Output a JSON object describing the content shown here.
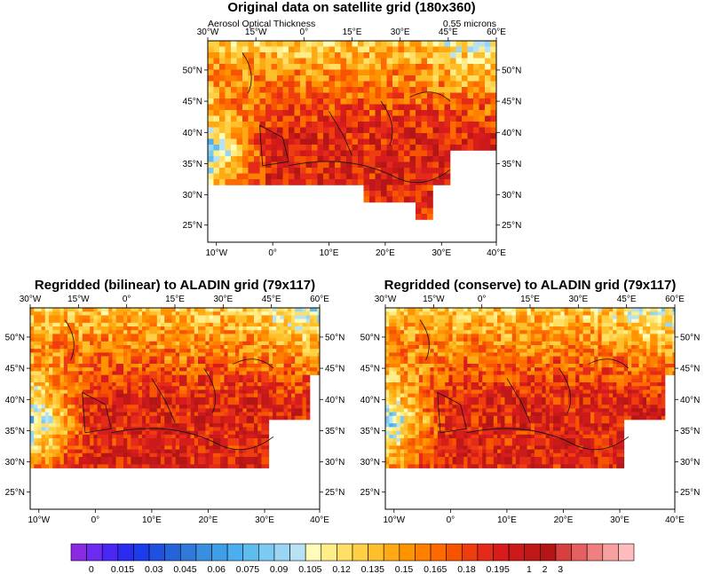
{
  "chart_data": [
    {
      "type": "heatmap",
      "title": "Original data on satellite grid (180x360)",
      "variable_label": "Aerosol Optical Thickness",
      "wavelength_label": "0.55 microns",
      "top_lon_ticks": [
        "30°W",
        "15°W",
        "0°",
        "15°E",
        "30°E",
        "45°E",
        "60°E"
      ],
      "bottom_lon_ticks": [
        "10°W",
        "0°",
        "10°E",
        "20°E",
        "30°E",
        "40°E"
      ],
      "lat_ticks": [
        "50°N",
        "45°N",
        "40°N",
        "35°N",
        "30°N",
        "25°N"
      ],
      "grid": "satellite 1x1 deg",
      "field": "AOT (mostly 0.165–0.2+ over sea and south, 0.1–0.15 over NW Europe, below 0.09 off Iberia)"
    },
    {
      "type": "heatmap",
      "title": "Regridded (bilinear) to ALADIN grid (79x117)",
      "top_lon_ticks": [
        "30°W",
        "15°W",
        "0°",
        "15°E",
        "30°E",
        "45°E",
        "60°E"
      ],
      "bottom_lon_ticks": [
        "10°W",
        "0°",
        "10°E",
        "20°E",
        "30°E",
        "40°E"
      ],
      "lat_ticks": [
        "50°N",
        "45°N",
        "40°N",
        "35°N",
        "30°N",
        "25°N"
      ],
      "grid": "ALADIN 79x117",
      "method": "bilinear"
    },
    {
      "type": "heatmap",
      "title": "Regridded (conserve) to ALADIN grid (79x117)",
      "top_lon_ticks": [
        "30°W",
        "15°W",
        "0°",
        "15°E",
        "30°E",
        "45°E",
        "60°E"
      ],
      "bottom_lon_ticks": [
        "10°W",
        "0°",
        "10°E",
        "20°E",
        "30°E",
        "40°E"
      ],
      "lat_ticks": [
        "50°N",
        "45°N",
        "40°N",
        "35°N",
        "30°N",
        "25°N"
      ],
      "grid": "ALADIN 79x117",
      "method": "conserve"
    }
  ],
  "colorbar": {
    "labels": [
      "0",
      "0.015",
      "0.03",
      "0.045",
      "0.06",
      "0.075",
      "0.09",
      "0.105",
      "0.12",
      "0.135",
      "0.15",
      "0.165",
      "0.18",
      "0.195",
      "1",
      "2",
      "3"
    ],
    "colors": [
      "#8a2be2",
      "#6c2bf2",
      "#4a27f2",
      "#2b2cf0",
      "#1a3ceb",
      "#2050e0",
      "#2563d8",
      "#2f79d8",
      "#3a8ee0",
      "#3f9ee8",
      "#4aaeef",
      "#5fbcef",
      "#7ccaf1",
      "#9ad6f3",
      "#b8e2f4",
      "#fffcb8",
      "#ffee88",
      "#ffdf66",
      "#ffcf44",
      "#ffbf2a",
      "#ffaa14",
      "#ff9400",
      "#ff7f00",
      "#ff6a00",
      "#f75400",
      "#ef3d10",
      "#e42a18",
      "#d81c1c",
      "#cc1a1a",
      "#c01818",
      "#b41515",
      "#d84040",
      "#e66060",
      "#f08080",
      "#f8a0a0",
      "#ffbcbc"
    ]
  }
}
